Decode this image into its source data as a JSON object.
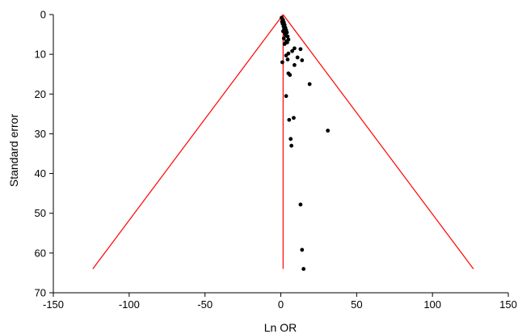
{
  "chart_data": {
    "type": "scatter",
    "title": "",
    "xlabel": "Ln OR",
    "ylabel": "Standard error",
    "xlim": [
      -150,
      150
    ],
    "ylim": [
      0,
      70
    ],
    "y_inverted": true,
    "x_ticks": [
      -150,
      -100,
      -50,
      0,
      50,
      100,
      150
    ],
    "y_ticks": [
      0,
      10,
      20,
      30,
      40,
      50,
      60,
      70
    ],
    "grid": false,
    "legend": "none",
    "colors": {
      "points": "#000000",
      "lines": "#ff0000",
      "axes": "#000000"
    },
    "reference_lines": [
      {
        "name": "funnel-left-bound",
        "points": [
          [
            1.5,
            0
          ],
          [
            -124,
            64
          ]
        ]
      },
      {
        "name": "funnel-right-bound",
        "points": [
          [
            1.5,
            0
          ],
          [
            127,
            64
          ]
        ]
      },
      {
        "name": "pooled-estimate-line",
        "points": [
          [
            1.5,
            0
          ],
          [
            1.5,
            64
          ]
        ]
      }
    ],
    "points": [
      {
        "x": 0.5,
        "y": 0.8
      },
      {
        "x": 1.0,
        "y": 1.1
      },
      {
        "x": 1.5,
        "y": 1.4
      },
      {
        "x": 0.8,
        "y": 1.8
      },
      {
        "x": 2.0,
        "y": 2.0
      },
      {
        "x": 1.2,
        "y": 2.3
      },
      {
        "x": 2.5,
        "y": 2.6
      },
      {
        "x": 1.8,
        "y": 3.0
      },
      {
        "x": 3.0,
        "y": 3.3
      },
      {
        "x": 2.2,
        "y": 3.6
      },
      {
        "x": 3.5,
        "y": 3.9
      },
      {
        "x": 1.5,
        "y": 4.2
      },
      {
        "x": 4.0,
        "y": 4.5
      },
      {
        "x": 2.8,
        "y": 4.8
      },
      {
        "x": 3.2,
        "y": 5.2
      },
      {
        "x": 4.5,
        "y": 5.5
      },
      {
        "x": 2.0,
        "y": 6.0
      },
      {
        "x": 5.0,
        "y": 6.3
      },
      {
        "x": 3.5,
        "y": 6.8
      },
      {
        "x": 4.2,
        "y": 7.0
      },
      {
        "x": 2.5,
        "y": 7.4
      },
      {
        "x": 9.0,
        "y": 8.5
      },
      {
        "x": 13.0,
        "y": 8.7
      },
      {
        "x": 7.5,
        "y": 9.2
      },
      {
        "x": 5.0,
        "y": 9.8
      },
      {
        "x": 3.5,
        "y": 10.3
      },
      {
        "x": 11.0,
        "y": 10.8
      },
      {
        "x": 4.5,
        "y": 11.3
      },
      {
        "x": 14.0,
        "y": 11.5
      },
      {
        "x": 1.0,
        "y": 12.0
      },
      {
        "x": 9.0,
        "y": 12.7
      },
      {
        "x": 5.0,
        "y": 14.8
      },
      {
        "x": 6.0,
        "y": 15.2
      },
      {
        "x": 19.0,
        "y": 17.5
      },
      {
        "x": 3.5,
        "y": 20.5
      },
      {
        "x": 8.5,
        "y": 26.0
      },
      {
        "x": 5.5,
        "y": 26.5
      },
      {
        "x": 31.0,
        "y": 29.2
      },
      {
        "x": 6.5,
        "y": 31.3
      },
      {
        "x": 7.0,
        "y": 33.0
      },
      {
        "x": 13.0,
        "y": 47.8
      },
      {
        "x": 14.0,
        "y": 59.2
      },
      {
        "x": 15.0,
        "y": 64.0
      }
    ]
  }
}
